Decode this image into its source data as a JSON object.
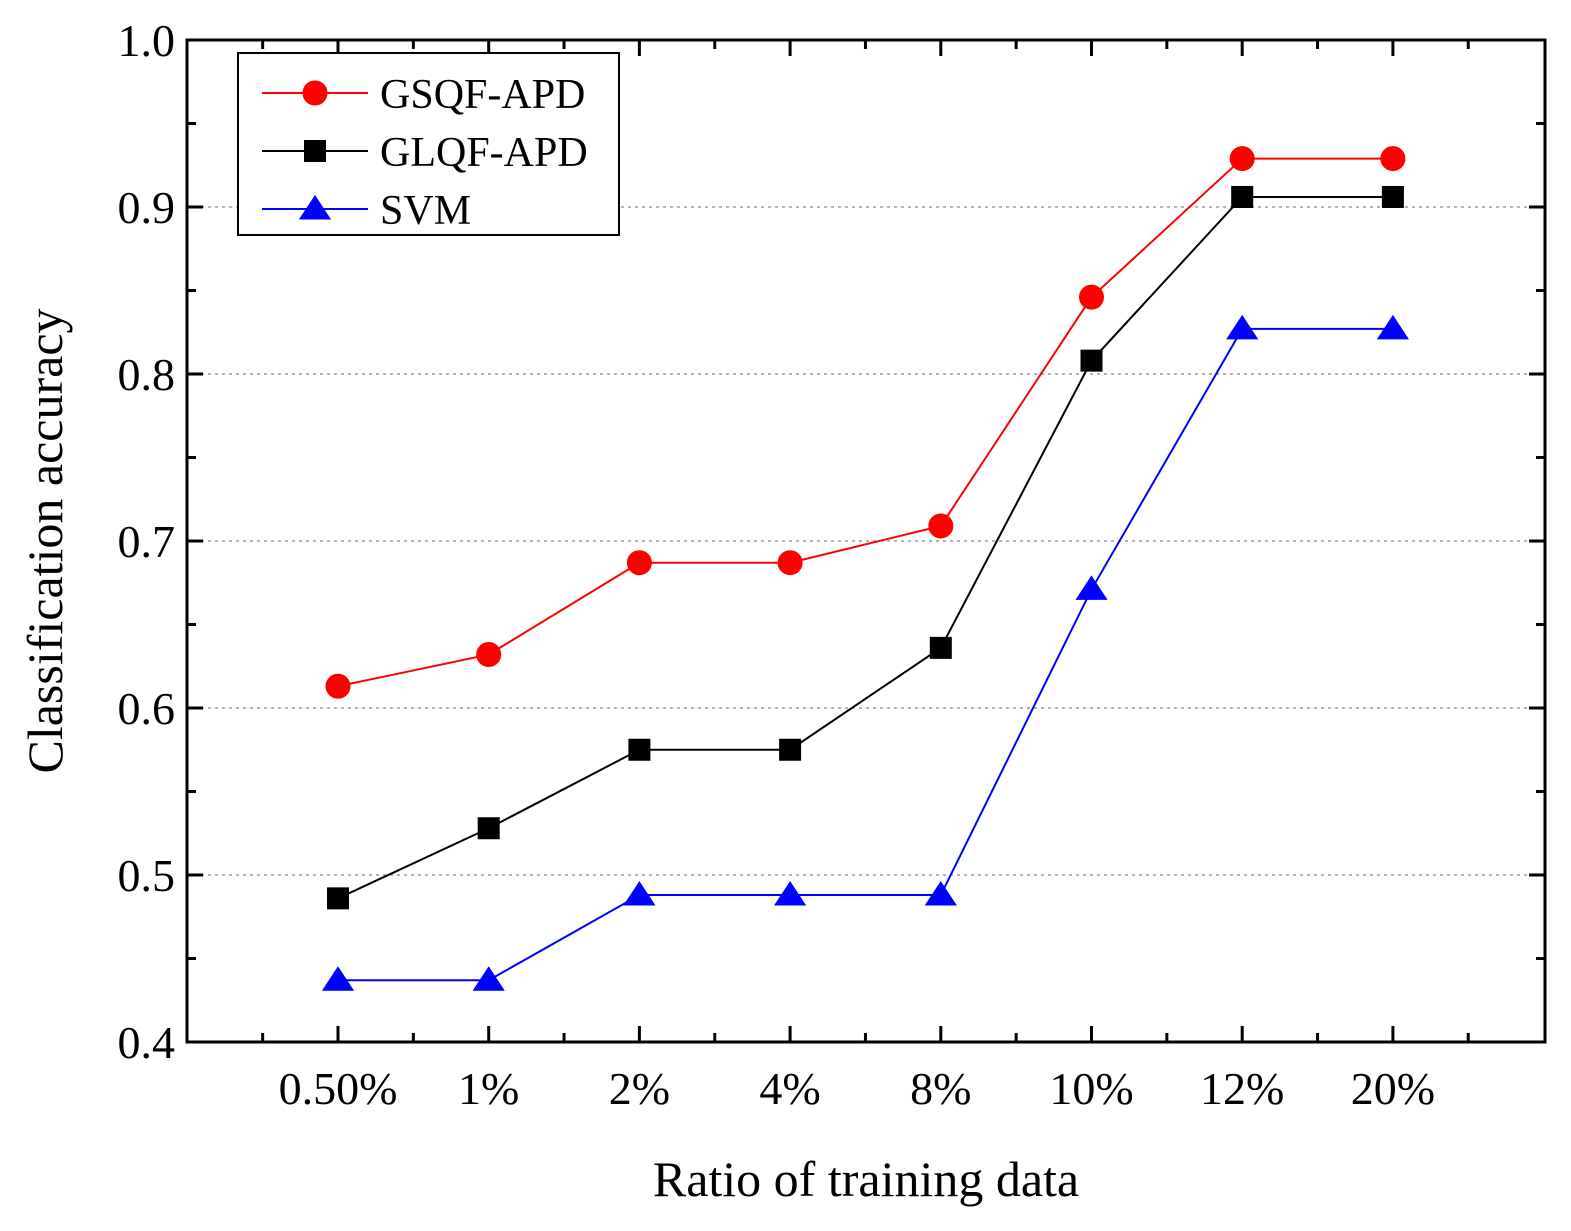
{
  "chart_data": {
    "type": "line",
    "title": "",
    "xlabel": "Ratio of training data",
    "ylabel": "Classification accuracy",
    "categories": [
      "0.50%",
      "1%",
      "2%",
      "4%",
      "8%",
      "10%",
      "12%",
      "20%"
    ],
    "ylim": [
      0.4,
      1.0
    ],
    "yticks": [
      "0.4",
      "0.5",
      "0.6",
      "0.7",
      "0.8",
      "0.9",
      "1.0"
    ],
    "grid": "horizontal dotted",
    "legend_position": "top-left",
    "series": [
      {
        "name": "GSQF-APD",
        "color": "#ff0000",
        "marker": "circle",
        "values": [
          0.613,
          0.632,
          0.687,
          0.687,
          0.709,
          0.846,
          0.929,
          0.929
        ]
      },
      {
        "name": "GLQF-APD",
        "color": "#000000",
        "marker": "square",
        "values": [
          0.486,
          0.528,
          0.575,
          0.575,
          0.636,
          0.808,
          0.906,
          0.906
        ]
      },
      {
        "name": "SVM",
        "color": "#0000ff",
        "marker": "triangle",
        "values": [
          0.437,
          0.437,
          0.488,
          0.488,
          0.488,
          0.671,
          0.827,
          0.827
        ]
      }
    ]
  }
}
